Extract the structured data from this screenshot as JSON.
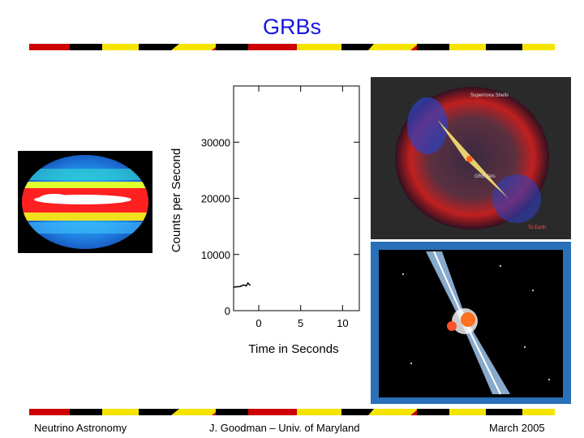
{
  "slide": {
    "title": "GRBs",
    "footer": {
      "left": "Neutrino Astronomy",
      "center": "J. Goodman – Univ. of Maryland",
      "right": "March 2005"
    }
  },
  "images": {
    "sky_map": {
      "description_icon": "all-sky-map"
    },
    "supernova_illustration": {
      "labels": [
        "Supernova Shells",
        "GRB Jets",
        "To Earth"
      ]
    },
    "jet_illustration": {
      "description_icon": "grb-jet"
    }
  },
  "colors": {
    "title": "#1515e0",
    "stripe_red": "#cc0000",
    "stripe_yellow": "#f5e400",
    "stripe_black": "#000000"
  },
  "chart_data": {
    "type": "line",
    "title": "",
    "xlabel": "Time in Seconds",
    "ylabel": "Counts per Second",
    "xlim": [
      -3,
      12
    ],
    "ylim": [
      0,
      40000
    ],
    "x_ticks": [
      0,
      5,
      10
    ],
    "y_ticks": [
      0,
      10000,
      20000,
      30000
    ],
    "x_tick_labels": [
      "0",
      "5",
      "10"
    ],
    "y_tick_labels": [
      "0",
      "10000",
      "20000",
      "30000"
    ],
    "series": [
      {
        "x": [
          -3,
          -2.2,
          -1.8,
          -1.5,
          -1.3,
          -1.0
        ],
        "y": [
          4200,
          4300,
          4600,
          4400,
          4900,
          4500
        ]
      }
    ]
  }
}
